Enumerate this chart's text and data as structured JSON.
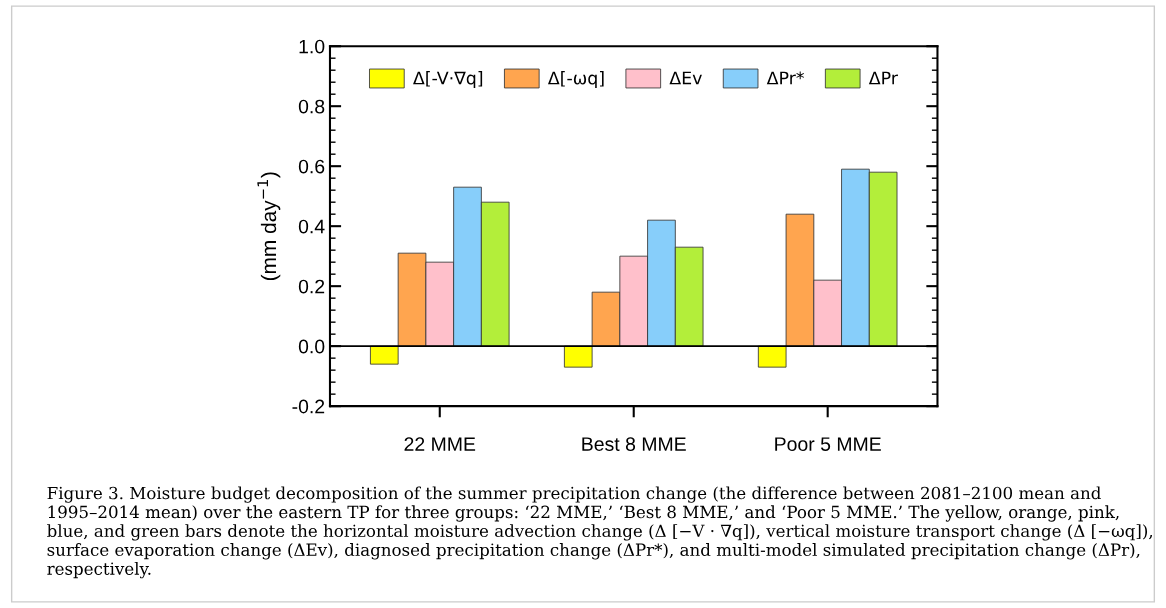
{
  "chart_data": {
    "type": "bar",
    "categories": [
      "22 MME",
      "Best 8 MME",
      "Poor 5 MME"
    ],
    "ylabel": "(mm day$^{−1}$)",
    "series": [
      {
        "name": "Δ[-V·∇q]",
        "color": "#ffff00",
        "values": [
          -0.06,
          -0.07,
          -0.07
        ]
      },
      {
        "name": "Δ[-ωq]",
        "color": "#ffa54f",
        "values": [
          0.31,
          0.18,
          0.44
        ]
      },
      {
        "name": "ΔEv",
        "color": "#ffc0cb",
        "values": [
          0.28,
          0.3,
          0.22
        ]
      },
      {
        "name": "ΔPr*",
        "color": "#87cefa",
        "values": [
          0.53,
          0.42,
          0.59
        ]
      },
      {
        "name": "ΔPr",
        "color": "#b3ee3a",
        "values": [
          0.48,
          0.33,
          0.58
        ]
      }
    ],
    "ylim": [
      -0.2,
      1.0
    ],
    "yticks": [
      {
        "value": -0.2,
        "label": "-0.2"
      },
      {
        "value": 0,
        "label": "0.0"
      },
      {
        "value": 0.2,
        "label": "0.2"
      },
      {
        "value": 0.4,
        "label": "0.4"
      },
      {
        "value": 0.6,
        "label": "0.6"
      },
      {
        "value": 0.8,
        "label": "0.8"
      },
      {
        "value": 1.0,
        "label": "1.0"
      }
    ],
    "ref_lines": [
      {
        "axis": "y",
        "value": 0,
        "color": "#000000"
      }
    ],
    "legend": "top",
    "grid": false,
    "annotations": [
      "Figure 3. Moisture budget decomposition of the summer precipitation change (the difference between 2081–2100 mean and 1995–2014 mean) over the eastern TP for three groups: ‘22 MME,’ ‘Best 8 MME,’ and ‘Poor 5 MME.’ The yellow, orange, pink, blue, and green bars denote the horizontal moisture advection change (Δ [−V · ∇q]), vertical moisture transport change (Δ [−ωq]), surface evaporation change (ΔEv), diagnosed precipitation change (ΔPr*), and multi-model simulated precipitation change (ΔPr), respectively."
    ]
  }
}
